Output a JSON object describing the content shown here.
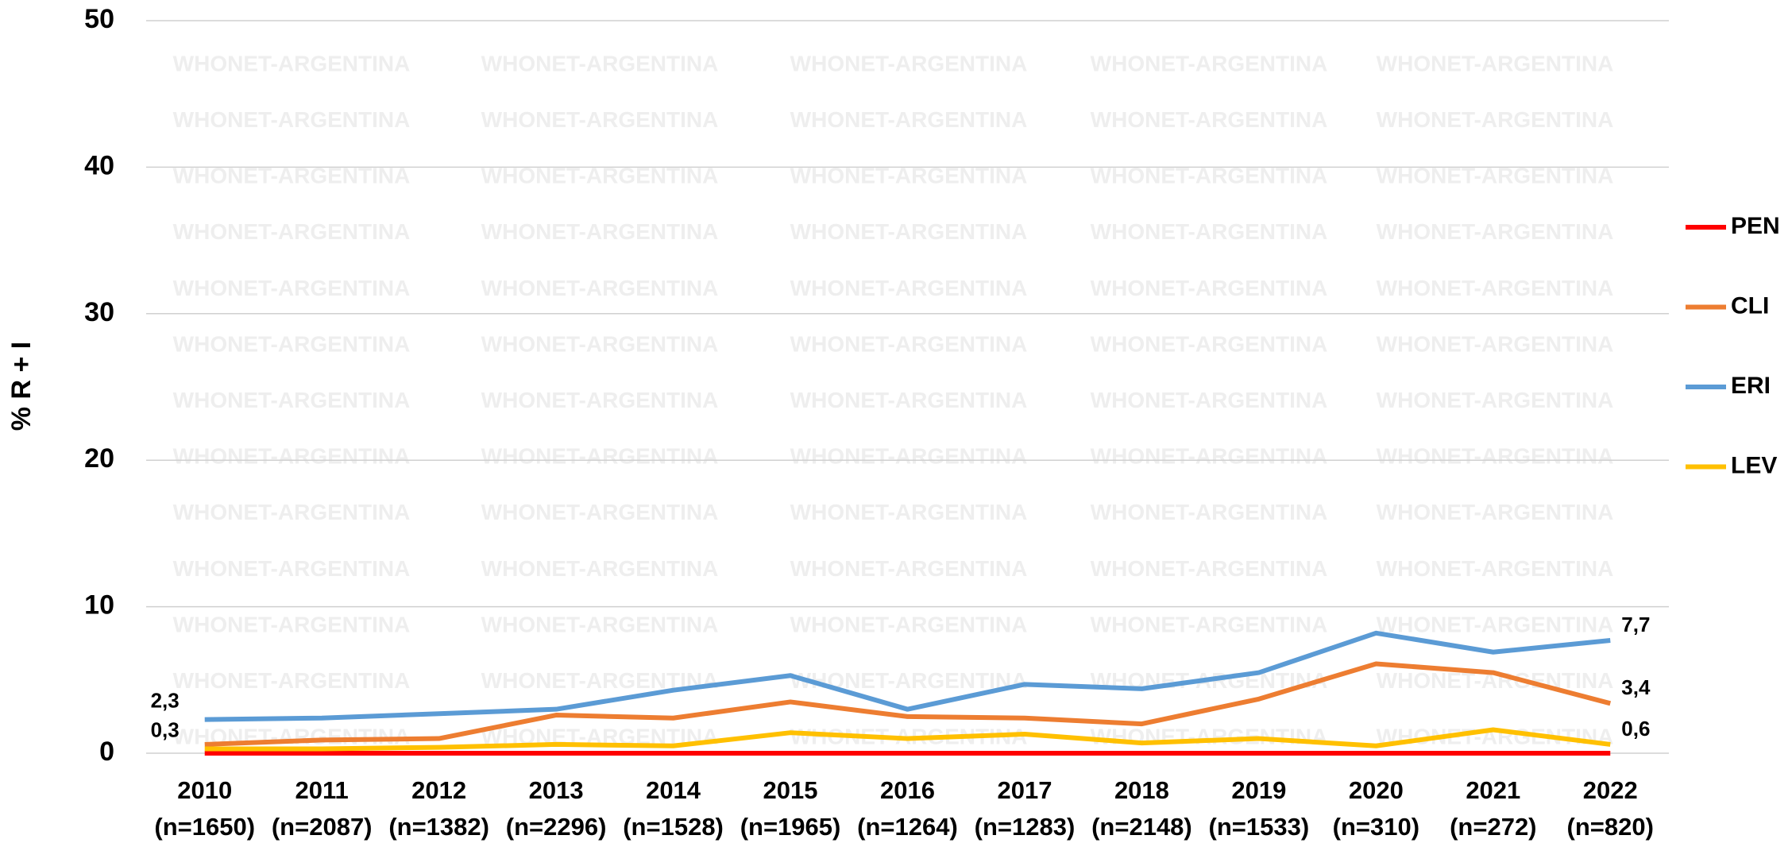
{
  "chart_data": {
    "type": "line",
    "y_label": "% R + I",
    "watermark": "WHONET-ARGENTINA",
    "categories": [
      "2010",
      "2011",
      "2012",
      "2013",
      "2014",
      "2015",
      "2016",
      "2017",
      "2018",
      "2019",
      "2020",
      "2021",
      "2022"
    ],
    "sample_sizes": [
      "(n=1650)",
      "(n=2087)",
      "(n=1382)",
      "(n=2296)",
      "(n=1528)",
      "(n=1965)",
      "(n=1264)",
      "(n=1283)",
      "(n=2148)",
      "(n=1533)",
      "(n=310)",
      "(n=272)",
      "(n=820)"
    ],
    "ylim": [
      0,
      50
    ],
    "yticks": [
      0,
      10,
      20,
      30,
      40,
      50
    ],
    "grid": true,
    "legend": "right",
    "series": [
      {
        "name": "PEN",
        "color": "#ff0000",
        "values": [
          0,
          0,
          0,
          0,
          0,
          0,
          0,
          0,
          0,
          0,
          0,
          0,
          0
        ]
      },
      {
        "name": "CLI",
        "color": "#ed7d31",
        "values": [
          0.6,
          0.9,
          1.0,
          2.6,
          2.4,
          3.5,
          2.5,
          2.4,
          2.0,
          3.7,
          6.1,
          5.5,
          3.4
        ],
        "value_labels": [
          null,
          null,
          null,
          null,
          null,
          null,
          null,
          null,
          null,
          null,
          null,
          null,
          "3,4"
        ]
      },
      {
        "name": "ERI",
        "color": "#5b9bd5",
        "values": [
          2.3,
          2.4,
          2.7,
          3.0,
          4.3,
          5.3,
          3.0,
          4.7,
          4.4,
          5.5,
          8.2,
          6.9,
          7.7
        ],
        "value_labels": [
          "2,3",
          null,
          null,
          null,
          null,
          null,
          null,
          null,
          null,
          null,
          null,
          null,
          "7,7"
        ]
      },
      {
        "name": "LEV",
        "color": "#ffc000",
        "values": [
          0.3,
          0.3,
          0.4,
          0.6,
          0.5,
          1.4,
          1.0,
          1.3,
          0.7,
          1.0,
          0.5,
          1.6,
          0.6
        ],
        "value_labels": [
          "0,3",
          null,
          null,
          null,
          null,
          null,
          null,
          null,
          null,
          null,
          null,
          null,
          "0,6"
        ]
      }
    ]
  }
}
